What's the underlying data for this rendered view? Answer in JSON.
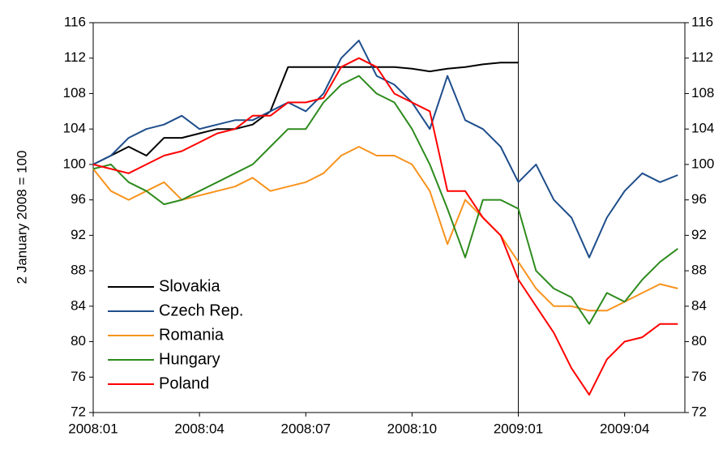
{
  "chart_data": {
    "type": "line",
    "y_label": "2 January 2008 = 100",
    "x": [
      0,
      0.5,
      1,
      1.5,
      2,
      2.5,
      3,
      3.5,
      4,
      4.5,
      5,
      5.5,
      6,
      6.5,
      7,
      7.5,
      8,
      8.5,
      9,
      9.5,
      10,
      10.5,
      11,
      11.5,
      12,
      12.5,
      13,
      13.5,
      14,
      14.5,
      15,
      15.5,
      16,
      16.5
    ],
    "xlim": [
      0,
      16.7
    ],
    "xticks": [
      {
        "value": 0,
        "label": "2008:01"
      },
      {
        "value": 3,
        "label": "2008:04"
      },
      {
        "value": 6,
        "label": "2008:07"
      },
      {
        "value": 9,
        "label": "2008:10"
      },
      {
        "value": 12,
        "label": "2009:01"
      },
      {
        "value": 15,
        "label": "2009:04"
      }
    ],
    "ylim": [
      72,
      116
    ],
    "yticks": [
      72,
      76,
      80,
      84,
      88,
      92,
      96,
      100,
      104,
      108,
      112,
      116
    ],
    "y2lim": [
      72,
      116
    ],
    "y2ticks": [
      72,
      76,
      80,
      84,
      88,
      92,
      96,
      100,
      104,
      108,
      112,
      116
    ],
    "vline": 12,
    "legend": "lower left",
    "series": [
      {
        "name": "Slovakia",
        "color": "#000000",
        "values": [
          100,
          101,
          102,
          101,
          103,
          103,
          103.5,
          104,
          104,
          104.5,
          106,
          111,
          111,
          111,
          111,
          111,
          111,
          111,
          110.8,
          110.5,
          110.8,
          111,
          111.3,
          111.5,
          111.5,
          null,
          null,
          null,
          null,
          null,
          null,
          null,
          null,
          null
        ]
      },
      {
        "name": "Czech Rep.",
        "color": "#1f4e8c",
        "values": [
          100,
          101,
          103,
          104,
          104.5,
          105.5,
          104,
          104.5,
          105,
          105,
          106,
          107,
          106,
          108,
          112,
          114,
          110,
          109,
          107,
          104,
          110,
          105,
          104,
          102,
          98,
          100,
          96,
          94,
          89.5,
          94,
          97,
          99,
          98,
          98.8
        ]
      },
      {
        "name": "Romania",
        "color": "#f7931e",
        "values": [
          99.5,
          97,
          96,
          97,
          98,
          96,
          96.5,
          97,
          97.5,
          98.5,
          97,
          97.5,
          98,
          99,
          101,
          102,
          101,
          101,
          100,
          97,
          91,
          96,
          94,
          92,
          89,
          86,
          84,
          84,
          83.5,
          83.5,
          84.5,
          85.5,
          86.5,
          86
        ]
      },
      {
        "name": "Hungary",
        "color": "#2e8b1e",
        "values": [
          99.5,
          100,
          98,
          97,
          95.5,
          96,
          97,
          98,
          99,
          100,
          102,
          104,
          104,
          107,
          109,
          110,
          108,
          107,
          104,
          100,
          95,
          89.5,
          96,
          96,
          95,
          88,
          86,
          85,
          82,
          85.5,
          84.5,
          87,
          89,
          90.5
        ]
      },
      {
        "name": "Poland",
        "color": "#ff0000",
        "values": [
          100,
          99.5,
          99,
          100,
          101,
          101.5,
          102.5,
          103.5,
          104,
          105.5,
          105.5,
          107,
          107,
          107.5,
          111,
          112,
          111,
          108,
          107,
          106,
          97,
          97,
          94,
          92,
          87,
          84,
          81,
          77,
          74,
          78,
          80,
          80.5,
          82,
          82
        ]
      }
    ]
  }
}
